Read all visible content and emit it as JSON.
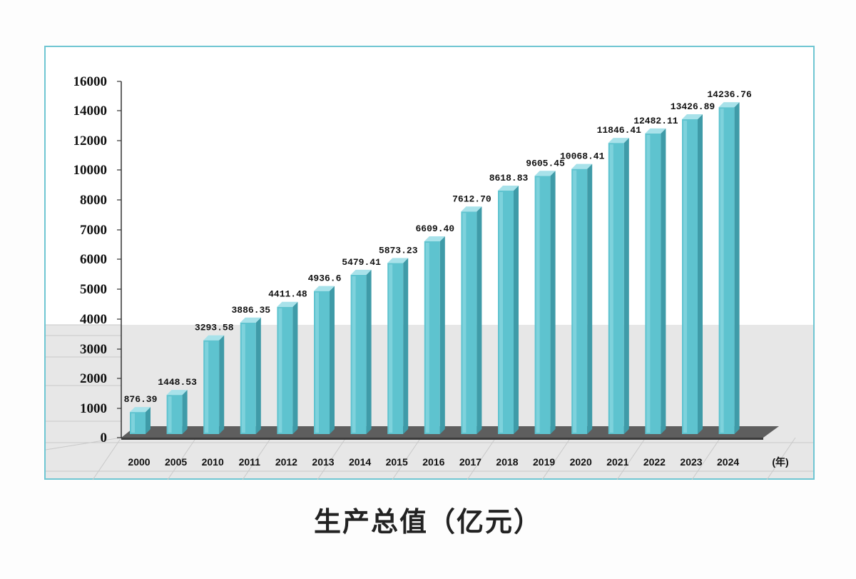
{
  "chart_data": {
    "type": "bar",
    "title": "生产总值（亿元）",
    "x_unit": "(年)",
    "categories": [
      "2000",
      "2005",
      "2010",
      "2011",
      "2012",
      "2013",
      "2014",
      "2015",
      "2016",
      "2017",
      "2018",
      "2019",
      "2020",
      "2021",
      "2022",
      "2023",
      "2024"
    ],
    "values": [
      876.39,
      1448.53,
      3293.58,
      3886.35,
      4411.48,
      4936.6,
      5479.41,
      5873.23,
      6609.4,
      7612.7,
      8618.83,
      9605.45,
      10068.41,
      11846.41,
      12482.11,
      13426.89,
      14236.76
    ],
    "data_labels": [
      "876.39",
      "1448.53",
      "3293.58",
      "3886.35",
      "4411.48",
      "4936.6",
      "5479.41",
      "5873.23",
      "6609.40",
      "7612.70",
      "8618.83",
      "9605.45",
      "10068.41",
      "11846.41",
      "12482.11",
      "13426.89",
      "14236.76"
    ],
    "y_ticks": [
      "0",
      "1000",
      "2000",
      "3000",
      "4000",
      "5000",
      "6000",
      "7000",
      "8000",
      "10000",
      "12000",
      "14000",
      "16000"
    ],
    "y_tick_values": [
      0,
      1000,
      2000,
      3000,
      4000,
      5000,
      6000,
      7000,
      8000,
      10000,
      12000,
      14000,
      16000
    ],
    "bar_color": "#5ec3cf",
    "bar_top_color": "#a8e2ea",
    "bar_side_color": "#3f9ba8",
    "floor_color": "#e7e7e7",
    "legend": "none"
  }
}
